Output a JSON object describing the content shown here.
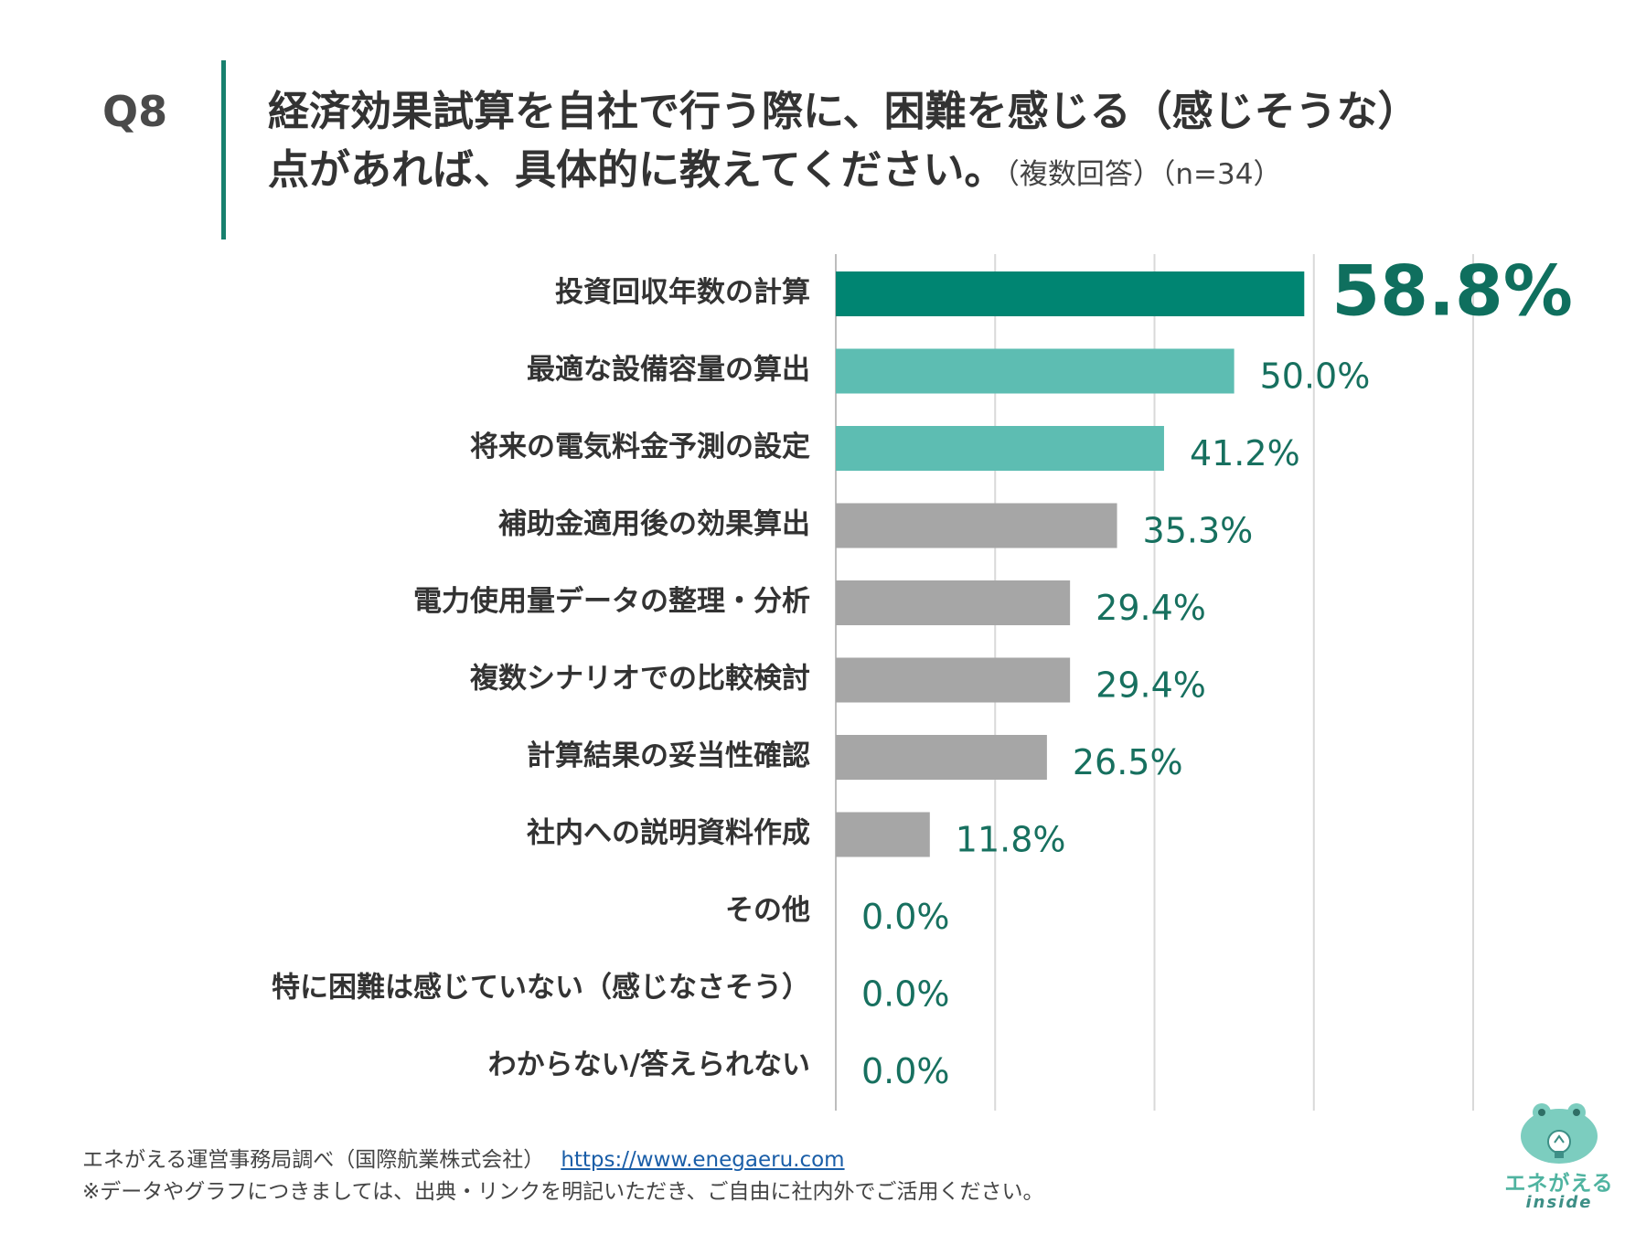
{
  "header": {
    "question_no": "Q8",
    "title_line1": "経済効果試算を自社で行う際に、困難を感じる（感じそうな）",
    "title_line2": "点があれば、具体的に教えてください。",
    "title_note": "（複数回答）（n=34）"
  },
  "chart_data": {
    "type": "bar",
    "orientation": "horizontal",
    "categories": [
      "投資回収年数の計算",
      "最適な設備容量の算出",
      "将来の電気料金予測の設定",
      "補助金適用後の効果算出",
      "電力使用量データの整理・分析",
      "複数シナリオでの比較検討",
      "計算結果の妥当性確認",
      "社内への説明資料作成",
      "その他",
      "特に困難は感じていない（感じなさそう）",
      "わからない/答えられない"
    ],
    "values": [
      58.8,
      50.0,
      41.2,
      35.3,
      29.4,
      29.4,
      26.5,
      11.8,
      0.0,
      0.0,
      0.0
    ],
    "value_labels": [
      "58.8%",
      "50.0%",
      "41.2%",
      "35.3%",
      "29.4%",
      "29.4%",
      "26.5%",
      "11.8%",
      "0.0%",
      "0.0%",
      "0.0%"
    ],
    "bar_colors": [
      "#008572",
      "#5dbdb2",
      "#5dbdb2",
      "#a6a6a6",
      "#a6a6a6",
      "#a6a6a6",
      "#a6a6a6",
      "#a6a6a6",
      "#a6a6a6",
      "#a6a6a6",
      "#a6a6a6"
    ],
    "label_color": "#17705f",
    "xlim": [
      0,
      80
    ],
    "gridlines": [
      0,
      20,
      40,
      60,
      80
    ],
    "unit": "%"
  },
  "footer": {
    "source": "エネがえる運営事務局調べ（国際航業株式会社）",
    "url": "https://www.enegaeru.com",
    "note": "※データやグラフにつきましては、出典・リンクを明記いただき、ご自由に社内外でご活用ください。"
  },
  "logo": {
    "name": "エネがえる",
    "sub": "inside"
  }
}
